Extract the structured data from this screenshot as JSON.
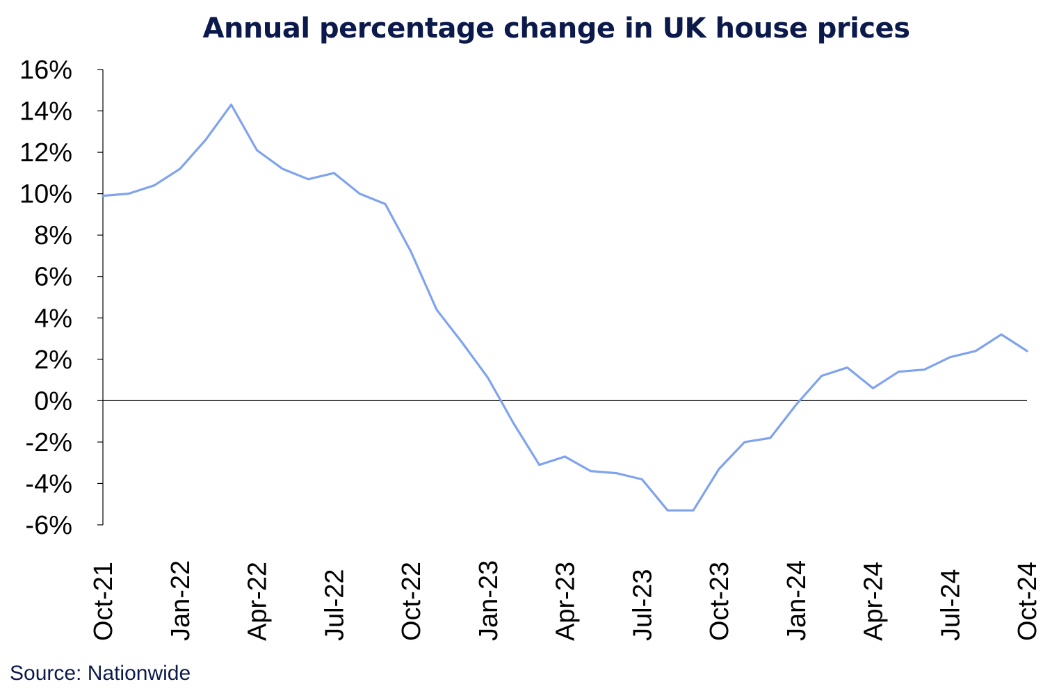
{
  "chart_data": {
    "type": "line",
    "title": "Annual percentage change in UK house prices",
    "xlabel": "",
    "ylabel": "",
    "ylim": [
      -6,
      16
    ],
    "ytick_values": [
      16,
      14,
      12,
      10,
      8,
      6,
      4,
      2,
      0,
      -2,
      -4,
      -6
    ],
    "ytick_labels": [
      "16%",
      "14%",
      "12%",
      "10%",
      "8%",
      "6%",
      "4%",
      "2%",
      "0%",
      "-2%",
      "-4%",
      "-6%"
    ],
    "xtick_labels": [
      "Oct-21",
      "Jan-22",
      "Apr-22",
      "Jul-22",
      "Oct-22",
      "Jan-23",
      "Apr-23",
      "Jul-23",
      "Oct-23",
      "Jan-24",
      "Apr-24",
      "Jul-24",
      "Oct-24"
    ],
    "x": [
      "Oct-21",
      "Nov-21",
      "Dec-21",
      "Jan-22",
      "Feb-22",
      "Mar-22",
      "Apr-22",
      "May-22",
      "Jun-22",
      "Jul-22",
      "Aug-22",
      "Sep-22",
      "Oct-22",
      "Nov-22",
      "Dec-22",
      "Jan-23",
      "Feb-23",
      "Mar-23",
      "Apr-23",
      "May-23",
      "Jun-23",
      "Jul-23",
      "Aug-23",
      "Sep-23",
      "Oct-23",
      "Nov-23",
      "Dec-23",
      "Jan-24",
      "Feb-24",
      "Mar-24",
      "Apr-24",
      "May-24",
      "Jun-24",
      "Jul-24",
      "Aug-24",
      "Sep-24",
      "Oct-24"
    ],
    "series": [
      {
        "values": [
          9.9,
          10.0,
          10.4,
          11.2,
          12.6,
          14.3,
          12.1,
          11.2,
          10.7,
          11.0,
          10.0,
          9.5,
          7.2,
          4.4,
          2.8,
          1.1,
          -1.1,
          -3.1,
          -2.7,
          -3.4,
          -3.5,
          -3.8,
          -5.3,
          -5.3,
          -3.3,
          -2.0,
          -1.8,
          -0.2,
          1.2,
          1.6,
          0.6,
          1.4,
          1.5,
          2.1,
          2.4,
          3.2,
          2.4
        ],
        "color": "#7fa3ef"
      }
    ],
    "zero_line": true,
    "grid": false,
    "legend": "none"
  },
  "footer": {
    "source": "Source: Nationwide"
  },
  "colors": {
    "text": "#0c1a4b",
    "axis": "#000000",
    "line": "#7fa3ef"
  }
}
